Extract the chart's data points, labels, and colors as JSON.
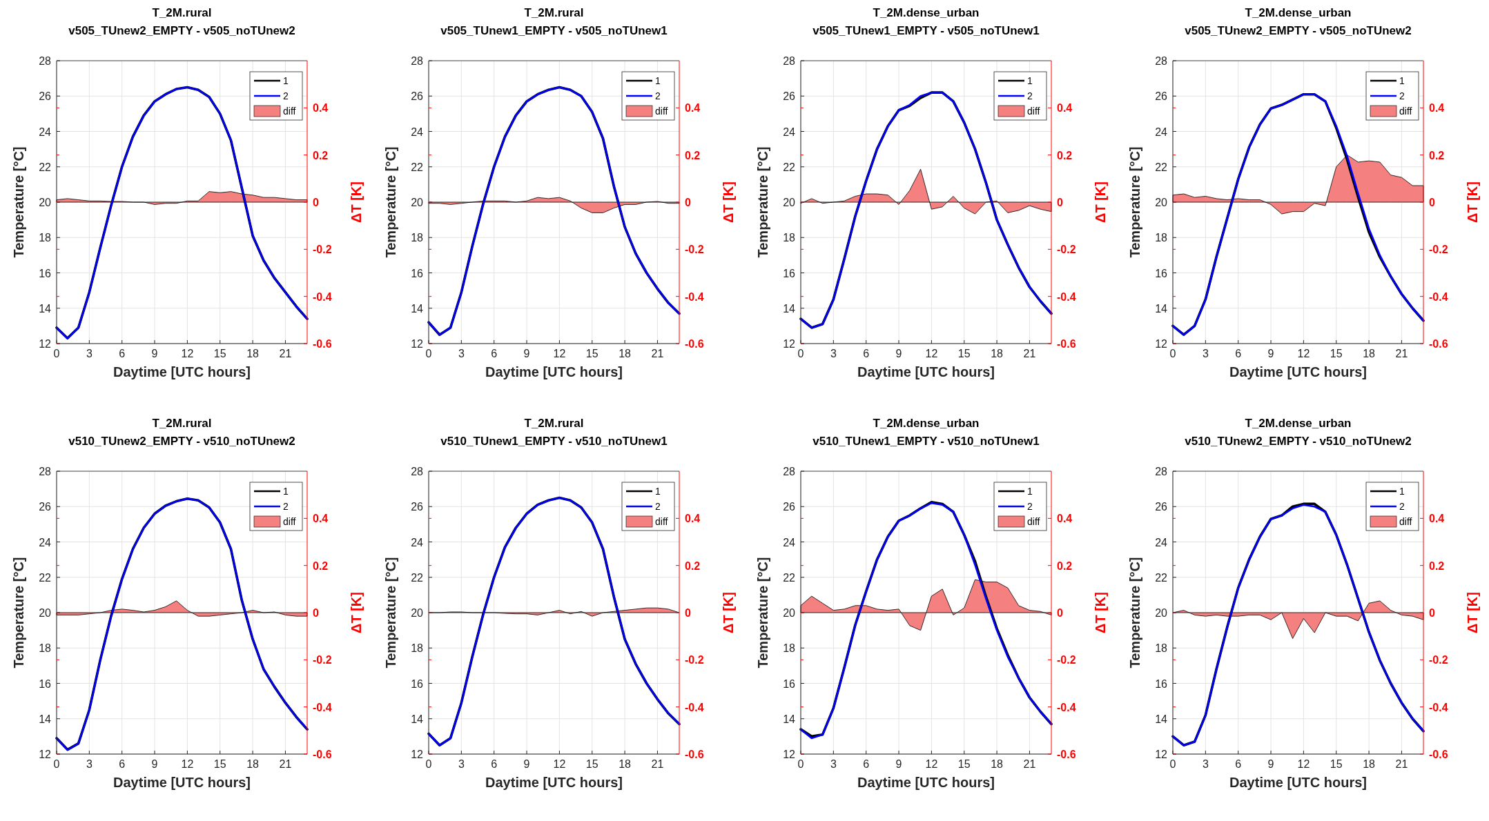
{
  "chart_data": [
    {
      "type": "line",
      "title": "T_2M.rural",
      "subtitle": "v505_TUnew2_EMPTY - v505_noTUnew2",
      "xlabel": "Daytime [UTC hours]",
      "ylabel": "Temperature [°C]",
      "y2label": "ΔT [K]",
      "x": [
        0,
        1,
        2,
        3,
        4,
        5,
        6,
        7,
        8,
        9,
        10,
        11,
        12,
        13,
        14,
        15,
        16,
        17,
        18,
        19,
        20,
        21,
        22,
        23
      ],
      "xlim": [
        0,
        23
      ],
      "xticks": [
        0,
        3,
        6,
        9,
        12,
        15,
        18,
        21
      ],
      "ylim": [
        12,
        28
      ],
      "yticks": [
        12,
        14,
        16,
        18,
        20,
        22,
        24,
        26,
        28
      ],
      "y2lim": [
        -0.6,
        0.6
      ],
      "y2ticks": [
        -0.6,
        -0.4,
        -0.2,
        0,
        0.2,
        0.4
      ],
      "grid": true,
      "legend": "top right",
      "series": [
        {
          "name": "1",
          "color": "#000000",
          "values": [
            12.9,
            12.3,
            12.9,
            14.9,
            17.4,
            19.8,
            22.0,
            23.7,
            24.9,
            25.7,
            26.1,
            26.4,
            26.5,
            26.35,
            25.95,
            25.0,
            23.5,
            20.8,
            18.1,
            16.7,
            15.7,
            14.9,
            14.1,
            13.4
          ]
        },
        {
          "name": "2",
          "color": "#0000ff",
          "values": [
            12.9,
            12.3,
            12.9,
            14.9,
            17.4,
            19.8,
            22.0,
            23.7,
            24.9,
            25.7,
            26.1,
            26.4,
            26.5,
            26.35,
            25.95,
            25.0,
            23.5,
            20.8,
            18.1,
            16.7,
            15.7,
            14.9,
            14.1,
            13.4
          ]
        },
        {
          "name": "diff",
          "type": "area",
          "axis": "y2",
          "color": "#f48080",
          "values": [
            0.01,
            0.015,
            0.01,
            0.005,
            0.005,
            0.003,
            0.003,
            0,
            0,
            -0.01,
            -0.005,
            -0.005,
            0.005,
            0.005,
            0.045,
            0.04,
            0.045,
            0.035,
            0.03,
            0.02,
            0.02,
            0.015,
            0.01,
            0.01
          ]
        }
      ]
    },
    {
      "type": "line",
      "title": "T_2M.rural",
      "subtitle": "v505_TUnew1_EMPTY - v505_noTUnew1",
      "xlabel": "Daytime [UTC hours]",
      "ylabel": "Temperature [°C]",
      "y2label": "ΔT [K]",
      "x": [
        0,
        1,
        2,
        3,
        4,
        5,
        6,
        7,
        8,
        9,
        10,
        11,
        12,
        13,
        14,
        15,
        16,
        17,
        18,
        19,
        20,
        21,
        22,
        23
      ],
      "xlim": [
        0,
        23
      ],
      "xticks": [
        0,
        3,
        6,
        9,
        12,
        15,
        18,
        21
      ],
      "ylim": [
        12,
        28
      ],
      "yticks": [
        12,
        14,
        16,
        18,
        20,
        22,
        24,
        26,
        28
      ],
      "y2lim": [
        -0.6,
        0.6
      ],
      "y2ticks": [
        -0.6,
        -0.4,
        -0.2,
        0,
        0.2,
        0.4
      ],
      "grid": true,
      "legend": "top right",
      "series": [
        {
          "name": "1",
          "color": "#000000",
          "values": [
            13.2,
            12.5,
            12.9,
            14.9,
            17.5,
            19.9,
            22.0,
            23.7,
            24.9,
            25.7,
            26.1,
            26.35,
            26.5,
            26.35,
            26.0,
            25.1,
            23.6,
            20.9,
            18.6,
            17.1,
            16.0,
            15.1,
            14.3,
            13.7
          ]
        },
        {
          "name": "2",
          "color": "#0000ff",
          "values": [
            13.2,
            12.5,
            12.9,
            14.9,
            17.5,
            19.9,
            22.0,
            23.7,
            24.9,
            25.7,
            26.1,
            26.35,
            26.5,
            26.35,
            26.0,
            25.1,
            23.6,
            20.9,
            18.6,
            17.1,
            16.0,
            15.1,
            14.3,
            13.7
          ]
        },
        {
          "name": "diff",
          "type": "area",
          "axis": "y2",
          "color": "#f48080",
          "values": [
            -0.005,
            -0.005,
            -0.01,
            -0.005,
            0,
            0.005,
            0.005,
            0.005,
            0,
            0.005,
            0.02,
            0.015,
            0.02,
            0.005,
            -0.025,
            -0.045,
            -0.045,
            -0.025,
            -0.01,
            -0.01,
            0,
            0.003,
            -0.005,
            -0.005
          ]
        }
      ]
    },
    {
      "type": "line",
      "title": "T_2M.dense_urban",
      "subtitle": "v505_TUnew1_EMPTY - v505_noTUnew1",
      "xlabel": "Daytime [UTC hours]",
      "ylabel": "Temperature [°C]",
      "y2label": "ΔT [K]",
      "x": [
        0,
        1,
        2,
        3,
        4,
        5,
        6,
        7,
        8,
        9,
        10,
        11,
        12,
        13,
        14,
        15,
        16,
        17,
        18,
        19,
        20,
        21,
        22,
        23
      ],
      "xlim": [
        0,
        23
      ],
      "xticks": [
        0,
        3,
        6,
        9,
        12,
        15,
        18,
        21
      ],
      "ylim": [
        12,
        28
      ],
      "yticks": [
        12,
        14,
        16,
        18,
        20,
        22,
        24,
        26,
        28
      ],
      "y2lim": [
        -0.6,
        0.6
      ],
      "y2ticks": [
        -0.6,
        -0.4,
        -0.2,
        0,
        0.2,
        0.4
      ],
      "grid": true,
      "legend": "top right",
      "series": [
        {
          "name": "1",
          "color": "#000000",
          "values": [
            13.4,
            12.9,
            13.1,
            14.5,
            16.8,
            19.2,
            21.2,
            23.0,
            24.3,
            25.2,
            25.45,
            25.9,
            26.2,
            26.2,
            25.7,
            24.5,
            23.0,
            21.1,
            19.0,
            17.6,
            16.3,
            15.2,
            14.4,
            13.7
          ]
        },
        {
          "name": "2",
          "color": "#0000ff",
          "values": [
            13.4,
            12.9,
            13.1,
            14.5,
            16.8,
            19.2,
            21.2,
            23.0,
            24.3,
            25.2,
            25.5,
            26.0,
            26.2,
            26.2,
            25.7,
            24.5,
            23.0,
            21.1,
            19.0,
            17.6,
            16.3,
            15.2,
            14.4,
            13.7
          ]
        },
        {
          "name": "diff",
          "type": "area",
          "axis": "y2",
          "color": "#f48080",
          "values": [
            -0.005,
            0.015,
            -0.005,
            0,
            0.005,
            0.025,
            0.035,
            0.035,
            0.03,
            -0.01,
            0.05,
            0.14,
            -0.03,
            -0.02,
            0.025,
            -0.025,
            -0.05,
            0,
            0.005,
            -0.045,
            -0.035,
            -0.015,
            -0.03,
            -0.04
          ]
        }
      ]
    },
    {
      "type": "line",
      "title": "T_2M.dense_urban",
      "subtitle": "v505_TUnew2_EMPTY - v505_noTUnew2",
      "xlabel": "Daytime [UTC hours]",
      "ylabel": "Temperature [°C]",
      "y2label": "ΔT [K]",
      "x": [
        0,
        1,
        2,
        3,
        4,
        5,
        6,
        7,
        8,
        9,
        10,
        11,
        12,
        13,
        14,
        15,
        16,
        17,
        18,
        19,
        20,
        21,
        22,
        23
      ],
      "xlim": [
        0,
        23
      ],
      "xticks": [
        0,
        3,
        6,
        9,
        12,
        15,
        18,
        21
      ],
      "ylim": [
        12,
        28
      ],
      "yticks": [
        12,
        14,
        16,
        18,
        20,
        22,
        24,
        26,
        28
      ],
      "y2lim": [
        -0.6,
        0.6
      ],
      "y2ticks": [
        -0.6,
        -0.4,
        -0.2,
        0,
        0.2,
        0.4
      ],
      "grid": true,
      "legend": "top right",
      "series": [
        {
          "name": "1",
          "color": "#000000",
          "values": [
            13.0,
            12.5,
            13.0,
            14.5,
            16.9,
            19.1,
            21.3,
            23.1,
            24.4,
            25.3,
            25.5,
            25.8,
            26.1,
            26.1,
            25.7,
            24.2,
            22.4,
            20.3,
            18.3,
            16.9,
            15.8,
            14.8,
            14.0,
            13.3
          ]
        },
        {
          "name": "2",
          "color": "#0000ff",
          "values": [
            13.0,
            12.5,
            13.0,
            14.5,
            16.9,
            19.1,
            21.3,
            23.1,
            24.4,
            25.3,
            25.5,
            25.8,
            26.1,
            26.1,
            25.7,
            24.3,
            22.6,
            20.5,
            18.5,
            17.0,
            15.8,
            14.8,
            14.0,
            13.3
          ]
        },
        {
          "name": "diff",
          "type": "area",
          "axis": "y2",
          "color": "#f48080",
          "values": [
            0.03,
            0.035,
            0.02,
            0.025,
            0.015,
            0.01,
            0.015,
            0.01,
            0.01,
            -0.01,
            -0.05,
            -0.04,
            -0.04,
            -0.005,
            -0.015,
            0.15,
            0.2,
            0.17,
            0.175,
            0.17,
            0.115,
            0.105,
            0.07,
            0.07
          ]
        }
      ]
    },
    {
      "type": "line",
      "title": "T_2M.rural",
      "subtitle": "v510_TUnew2_EMPTY - v510_noTUnew2",
      "xlabel": "Daytime [UTC hours]",
      "ylabel": "Temperature [°C]",
      "y2label": "ΔT [K]",
      "x": [
        0,
        1,
        2,
        3,
        4,
        5,
        6,
        7,
        8,
        9,
        10,
        11,
        12,
        13,
        14,
        15,
        16,
        17,
        18,
        19,
        20,
        21,
        22,
        23
      ],
      "xlim": [
        0,
        23
      ],
      "xticks": [
        0,
        3,
        6,
        9,
        12,
        15,
        18,
        21
      ],
      "ylim": [
        12,
        28
      ],
      "yticks": [
        12,
        14,
        16,
        18,
        20,
        22,
        24,
        26,
        28
      ],
      "y2lim": [
        -0.6,
        0.6
      ],
      "y2ticks": [
        -0.6,
        -0.4,
        -0.2,
        0,
        0.2,
        0.4
      ],
      "grid": true,
      "legend": "top right",
      "series": [
        {
          "name": "1",
          "color": "#000000",
          "values": [
            12.9,
            12.25,
            12.6,
            14.5,
            17.3,
            19.8,
            21.9,
            23.6,
            24.8,
            25.6,
            26.05,
            26.3,
            26.45,
            26.35,
            25.95,
            25.1,
            23.6,
            20.7,
            18.5,
            16.8,
            15.8,
            14.9,
            14.1,
            13.4
          ]
        },
        {
          "name": "2",
          "color": "#0000ff",
          "values": [
            12.9,
            12.25,
            12.6,
            14.5,
            17.3,
            19.8,
            21.9,
            23.6,
            24.8,
            25.6,
            26.05,
            26.3,
            26.45,
            26.35,
            25.95,
            25.1,
            23.6,
            20.7,
            18.5,
            16.8,
            15.8,
            14.9,
            14.1,
            13.4
          ]
        },
        {
          "name": "diff",
          "type": "area",
          "axis": "y2",
          "color": "#f48080",
          "values": [
            -0.01,
            -0.01,
            -0.01,
            -0.005,
            0,
            0.01,
            0.015,
            0.01,
            0.003,
            0.01,
            0.025,
            0.05,
            0.01,
            -0.015,
            -0.015,
            -0.01,
            -0.005,
            0,
            0.01,
            0,
            0.003,
            -0.01,
            -0.015,
            -0.015
          ]
        }
      ]
    },
    {
      "type": "line",
      "title": "T_2M.rural",
      "subtitle": "v510_TUnew1_EMPTY - v510_noTUnew1",
      "xlabel": "Daytime [UTC hours]",
      "ylabel": "Temperature [°C]",
      "y2label": "ΔT [K]",
      "x": [
        0,
        1,
        2,
        3,
        4,
        5,
        6,
        7,
        8,
        9,
        10,
        11,
        12,
        13,
        14,
        15,
        16,
        17,
        18,
        19,
        20,
        21,
        22,
        23
      ],
      "xlim": [
        0,
        23
      ],
      "xticks": [
        0,
        3,
        6,
        9,
        12,
        15,
        18,
        21
      ],
      "ylim": [
        12,
        28
      ],
      "yticks": [
        12,
        14,
        16,
        18,
        20,
        22,
        24,
        26,
        28
      ],
      "y2lim": [
        -0.6,
        0.6
      ],
      "y2ticks": [
        -0.6,
        -0.4,
        -0.2,
        0,
        0.2,
        0.4
      ],
      "grid": true,
      "legend": "top right",
      "series": [
        {
          "name": "1",
          "color": "#000000",
          "values": [
            13.15,
            12.5,
            12.9,
            14.9,
            17.5,
            19.9,
            22.0,
            23.7,
            24.8,
            25.6,
            26.1,
            26.35,
            26.5,
            26.35,
            25.95,
            25.1,
            23.6,
            20.9,
            18.5,
            17.1,
            16.0,
            15.1,
            14.3,
            13.7
          ]
        },
        {
          "name": "2",
          "color": "#0000ff",
          "values": [
            13.15,
            12.5,
            12.9,
            14.9,
            17.5,
            19.9,
            22.0,
            23.7,
            24.8,
            25.6,
            26.1,
            26.35,
            26.5,
            26.35,
            25.95,
            25.1,
            23.6,
            20.9,
            18.5,
            17.1,
            16.0,
            15.1,
            14.3,
            13.7
          ]
        },
        {
          "name": "diff",
          "type": "area",
          "axis": "y2",
          "color": "#f48080",
          "values": [
            0,
            0,
            0.003,
            0.003,
            0,
            0,
            0,
            -0.003,
            -0.005,
            -0.005,
            -0.01,
            0,
            0.01,
            -0.005,
            0.005,
            -0.015,
            0,
            0.005,
            0.01,
            0.015,
            0.02,
            0.02,
            0.015,
            0
          ]
        }
      ]
    },
    {
      "type": "line",
      "title": "T_2M.dense_urban",
      "subtitle": "v510_TUnew1_EMPTY - v510_noTUnew1",
      "xlabel": "Daytime [UTC hours]",
      "ylabel": "Temperature [°C]",
      "y2label": "ΔT [K]",
      "x": [
        0,
        1,
        2,
        3,
        4,
        5,
        6,
        7,
        8,
        9,
        10,
        11,
        12,
        13,
        14,
        15,
        16,
        17,
        18,
        19,
        20,
        21,
        22,
        23
      ],
      "xlim": [
        0,
        23
      ],
      "xticks": [
        0,
        3,
        6,
        9,
        12,
        15,
        18,
        21
      ],
      "ylim": [
        12,
        28
      ],
      "yticks": [
        12,
        14,
        16,
        18,
        20,
        22,
        24,
        26,
        28
      ],
      "y2lim": [
        -0.6,
        0.6
      ],
      "y2ticks": [
        -0.6,
        -0.4,
        -0.2,
        0,
        0.2,
        0.4
      ],
      "grid": true,
      "legend": "top right",
      "series": [
        {
          "name": "1",
          "color": "#000000",
          "values": [
            13.4,
            13.0,
            13.1,
            14.6,
            16.9,
            19.3,
            21.2,
            23.0,
            24.3,
            25.2,
            25.5,
            25.9,
            26.25,
            26.15,
            25.7,
            24.4,
            22.9,
            20.9,
            19.1,
            17.6,
            16.3,
            15.2,
            14.4,
            13.7
          ]
        },
        {
          "name": "2",
          "color": "#0000ff",
          "values": [
            13.4,
            12.9,
            13.1,
            14.6,
            16.9,
            19.3,
            21.2,
            23.0,
            24.3,
            25.2,
            25.5,
            25.9,
            26.2,
            26.1,
            25.7,
            24.4,
            22.7,
            20.8,
            19.0,
            17.5,
            16.3,
            15.2,
            14.4,
            13.7
          ]
        },
        {
          "name": "diff",
          "type": "area",
          "axis": "y2",
          "color": "#f48080",
          "values": [
            0.03,
            0.07,
            0.04,
            0.01,
            0.015,
            0.03,
            0.03,
            0.015,
            0.01,
            0.015,
            -0.055,
            -0.075,
            0.07,
            0.1,
            -0.01,
            0.02,
            0.14,
            0.13,
            0.13,
            0.105,
            0.03,
            0.01,
            0.005,
            -0.01
          ]
        }
      ]
    },
    {
      "type": "line",
      "title": "T_2M.dense_urban",
      "subtitle": "v510_TUnew2_EMPTY - v510_noTUnew2",
      "xlabel": "Daytime [UTC hours]",
      "ylabel": "Temperature [°C]",
      "y2label": "ΔT [K]",
      "x": [
        0,
        1,
        2,
        3,
        4,
        5,
        6,
        7,
        8,
        9,
        10,
        11,
        12,
        13,
        14,
        15,
        16,
        17,
        18,
        19,
        20,
        21,
        22,
        23
      ],
      "xlim": [
        0,
        23
      ],
      "xticks": [
        0,
        3,
        6,
        9,
        12,
        15,
        18,
        21
      ],
      "ylim": [
        12,
        28
      ],
      "yticks": [
        12,
        14,
        16,
        18,
        20,
        22,
        24,
        26,
        28
      ],
      "y2lim": [
        -0.6,
        0.6
      ],
      "y2ticks": [
        -0.6,
        -0.4,
        -0.2,
        0,
        0.2,
        0.4
      ],
      "grid": true,
      "legend": "top right",
      "series": [
        {
          "name": "1",
          "color": "#000000",
          "values": [
            13.0,
            12.5,
            12.7,
            14.2,
            16.8,
            19.2,
            21.4,
            23.0,
            24.3,
            25.3,
            25.5,
            26.0,
            26.15,
            26.15,
            25.7,
            24.4,
            22.7,
            20.8,
            18.9,
            17.3,
            16.0,
            14.9,
            14.0,
            13.3
          ]
        },
        {
          "name": "2",
          "color": "#0000ff",
          "values": [
            13.0,
            12.5,
            12.7,
            14.2,
            16.8,
            19.2,
            21.4,
            23.0,
            24.3,
            25.3,
            25.5,
            25.9,
            26.1,
            26.0,
            25.7,
            24.4,
            22.7,
            20.8,
            18.9,
            17.3,
            16.0,
            14.9,
            14.0,
            13.3
          ]
        },
        {
          "name": "diff",
          "type": "area",
          "axis": "y2",
          "color": "#f48080",
          "values": [
            0,
            0.01,
            -0.01,
            -0.015,
            -0.01,
            -0.015,
            -0.015,
            -0.01,
            -0.01,
            -0.03,
            0,
            -0.11,
            -0.025,
            -0.085,
            0,
            -0.015,
            -0.015,
            -0.035,
            0.04,
            0.05,
            0.01,
            -0.01,
            -0.015,
            -0.03
          ]
        }
      ]
    }
  ]
}
